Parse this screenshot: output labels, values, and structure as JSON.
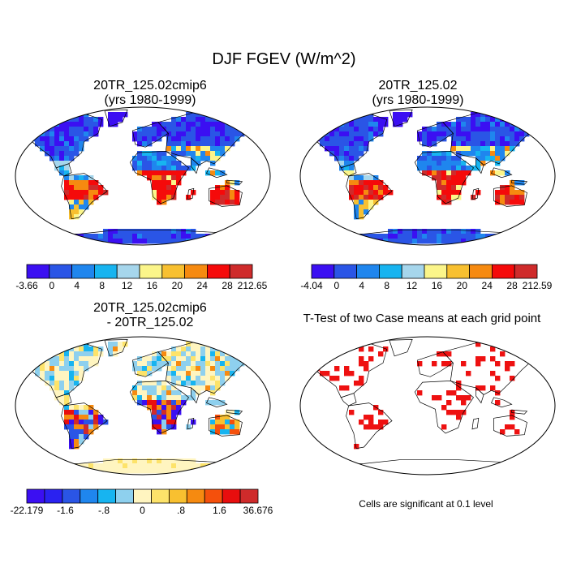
{
  "figure": {
    "title": "DJF FGEV (W/m^2)"
  },
  "panels": [
    {
      "title_line1": "20TR_125.02cmip6",
      "title_line2": "(yrs 1980-1999)",
      "colorbar_labels": [
        "-3.66",
        "0",
        "4",
        "8",
        "12",
        "16",
        "20",
        "24",
        "28",
        "212.65"
      ],
      "colors": [
        "#3b0ff2",
        "#2a55e6",
        "#1f86ee",
        "#17b4f0",
        "#a6d6ec",
        "#fbf58a",
        "#f8c030",
        "#f68a10",
        "#f50a0a",
        "#cf2b2b"
      ]
    },
    {
      "title_line1": "20TR_125.02",
      "title_line2": "(yrs 1980-1999)",
      "colorbar_labels": [
        "-4.04",
        "0",
        "4",
        "8",
        "12",
        "16",
        "20",
        "24",
        "28",
        "212.59"
      ],
      "colors": [
        "#3b0ff2",
        "#2a55e6",
        "#1f86ee",
        "#17b4f0",
        "#a6d6ec",
        "#fbf58a",
        "#f8c030",
        "#f68a10",
        "#f50a0a",
        "#cf2b2b"
      ]
    },
    {
      "title_line1": "20TR_125.02cmip6",
      "title_line2": "- 20TR_125.02",
      "colorbar_labels": [
        "-22.179",
        "-1.6",
        "-.8",
        "0",
        ".8",
        "1.6",
        "36.676"
      ],
      "colors": [
        "#3b0ff2",
        "#2a22f0",
        "#2a55e6",
        "#1f86ee",
        "#17b4f0",
        "#8ed0ee",
        "#fff5c0",
        "#fde36a",
        "#f8c030",
        "#f68a10",
        "#f5500c",
        "#e80e0e",
        "#cf2b2b"
      ]
    },
    {
      "title": "T-Test of two Case means at each grid point",
      "note": "Cells are significant at 0.1 level",
      "significant_color": "#ee1111"
    }
  ]
}
